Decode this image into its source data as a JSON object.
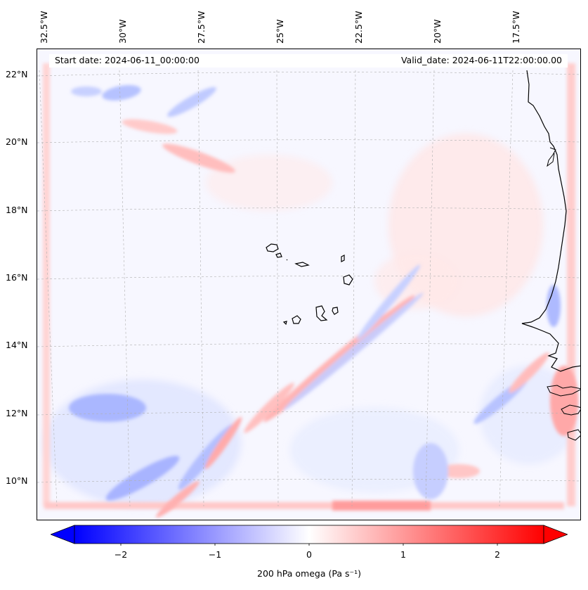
{
  "map": {
    "start_date": "Start date: 2024-06-11_00:00:00",
    "valid_date": "Valid_date: 2024-06-11T22:00:00.00",
    "lon_labels": [
      "32.5°W",
      "30°W",
      "27.5°W",
      "25°W",
      "22.5°W",
      "20°W",
      "17.5°W"
    ],
    "lat_labels": [
      "22°N",
      "20°N",
      "18°N",
      "16°N",
      "14°N",
      "12°N",
      "10°N"
    ],
    "field": "200 hPa omega",
    "grid_lines": true,
    "features": [
      "coastline-africa",
      "cabo-verde-islands"
    ]
  },
  "colorbar": {
    "label": "200 hPa omega (Pa s⁻¹)",
    "ticks": [
      "−2",
      "−1",
      "0",
      "1",
      "2"
    ],
    "vmin": -2.5,
    "vmax": 2.5,
    "extend": "both",
    "colors": {
      "min": "#0000ff",
      "mid": "#ffffff",
      "max": "#ff0000"
    }
  }
}
